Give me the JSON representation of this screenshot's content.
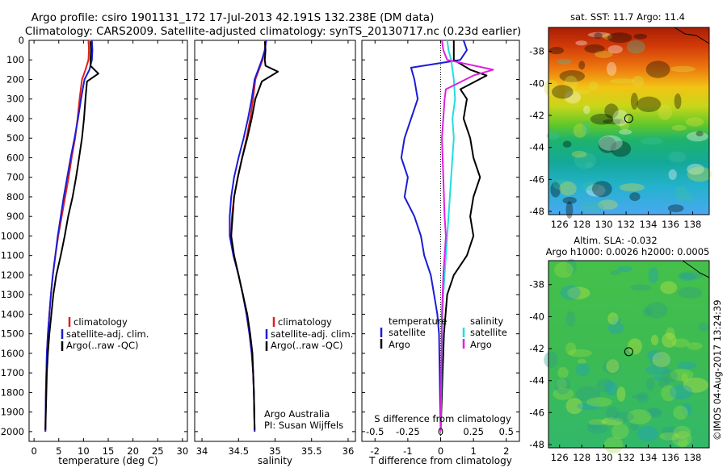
{
  "header": {
    "title_line1": "Argo profile: csiro 1901131_172 17-Jul-2013 42.191S 132.238E (DM data)",
    "title_line2": "Climatology: CARS2009. Satellite-adjusted climatology: synTS_20130717.nc (0.23d earlier)"
  },
  "colors": {
    "climatology": "#e0201b",
    "satellite": "#1c1cd6",
    "argo": "#000000",
    "salinity_satellite": "#22dede",
    "salinity_argo": "#e020e0"
  },
  "chart_data": [
    {
      "type": "line",
      "name": "temperature-profile",
      "xlabel": "temperature (deg C)",
      "ylabel": "",
      "xlim": [
        -1,
        31
      ],
      "ylim": [
        2050,
        0
      ],
      "xticks": [
        0,
        5,
        10,
        15,
        20,
        25,
        30
      ],
      "yticks": [
        0,
        100,
        200,
        300,
        400,
        500,
        600,
        700,
        800,
        900,
        1000,
        1100,
        1200,
        1300,
        1400,
        1500,
        1600,
        1700,
        1800,
        1900,
        2000
      ],
      "legend": [
        "climatology",
        "satellite-adj. clim.",
        "Argo(..raw -QC)"
      ],
      "legend_position": "lower-center",
      "series": [
        {
          "name": "climatology",
          "x": [
            11.0,
            11.1,
            11.0,
            10.4,
            9.7,
            9.2,
            8.8,
            8.3,
            7.6,
            7.0,
            6.3,
            5.6,
            4.9,
            4.3,
            3.8,
            3.4,
            3.1,
            2.8,
            2.6,
            2.5,
            2.4,
            2.3
          ],
          "y": [
            0,
            50,
            100,
            150,
            200,
            300,
            400,
            500,
            600,
            700,
            800,
            900,
            1000,
            1100,
            1200,
            1300,
            1400,
            1500,
            1600,
            1700,
            1800,
            2000
          ]
        },
        {
          "name": "satellite-adj. clim.",
          "x": [
            11.7,
            11.8,
            11.7,
            11.2,
            10.2,
            9.5,
            8.9,
            8.2,
            7.4,
            6.7,
            6.0,
            5.4,
            4.8,
            4.3,
            3.8,
            3.4,
            3.1,
            2.8,
            2.6,
            2.5,
            2.4,
            2.3
          ],
          "y": [
            0,
            50,
            100,
            150,
            200,
            300,
            400,
            500,
            600,
            700,
            800,
            900,
            1000,
            1100,
            1200,
            1300,
            1400,
            1500,
            1600,
            1700,
            1800,
            2000
          ]
        },
        {
          "name": "Argo(..raw -QC)",
          "x": [
            11.4,
            11.5,
            11.4,
            11.4,
            13.0,
            10.7,
            10.4,
            10.1,
            9.7,
            9.1,
            8.5,
            7.8,
            6.9,
            6.2,
            5.4,
            4.5,
            3.9,
            3.5,
            3.1,
            2.8,
            2.6,
            2.5,
            2.4,
            2.3
          ],
          "y": [
            5,
            50,
            100,
            130,
            170,
            210,
            300,
            400,
            500,
            600,
            700,
            800,
            900,
            1000,
            1100,
            1200,
            1300,
            1400,
            1500,
            1600,
            1700,
            1800,
            1900,
            1990
          ]
        }
      ]
    },
    {
      "type": "line",
      "name": "salinity-profile",
      "xlabel": "salinity",
      "ylabel": "",
      "xlim": [
        33.9,
        36.1
      ],
      "ylim": [
        2050,
        0
      ],
      "xticks": [
        34,
        34.5,
        35,
        35.5,
        36
      ],
      "legend": [
        "climatology",
        "satellite-adj. clim.",
        "Argo(..raw -QC)"
      ],
      "legend_position": "lower-center",
      "annotation_lines": [
        "Argo Australia",
        "PI: Susan Wijffels"
      ],
      "series": [
        {
          "name": "climatology",
          "x": [
            34.87,
            34.86,
            34.83,
            34.78,
            34.73,
            34.7,
            34.66,
            34.61,
            34.55,
            34.49,
            34.44,
            34.41,
            34.4,
            34.44,
            34.5,
            34.56,
            34.61,
            34.65,
            34.68,
            34.7,
            34.71,
            34.72
          ],
          "y": [
            0,
            50,
            100,
            150,
            200,
            300,
            400,
            500,
            600,
            700,
            800,
            900,
            1000,
            1100,
            1200,
            1300,
            1400,
            1500,
            1600,
            1700,
            1800,
            2000
          ]
        },
        {
          "name": "satellite-adj. clim.",
          "x": [
            34.88,
            34.86,
            34.82,
            34.77,
            34.72,
            34.68,
            34.63,
            34.57,
            34.5,
            34.44,
            34.4,
            34.38,
            34.38,
            34.43,
            34.5,
            34.56,
            34.61,
            34.65,
            34.68,
            34.7,
            34.71,
            34.72
          ],
          "y": [
            0,
            50,
            100,
            150,
            200,
            300,
            400,
            500,
            600,
            700,
            800,
            900,
            1000,
            1100,
            1200,
            1300,
            1400,
            1500,
            1600,
            1700,
            1800,
            2000
          ]
        },
        {
          "name": "Argo(..raw -QC)",
          "x": [
            34.86,
            34.87,
            34.86,
            34.87,
            35.04,
            34.82,
            34.73,
            34.68,
            34.62,
            34.55,
            34.49,
            34.44,
            34.42,
            34.4,
            34.44,
            34.5,
            34.56,
            34.62,
            34.66,
            34.69,
            34.7,
            34.71,
            34.72
          ],
          "y": [
            5,
            50,
            100,
            130,
            160,
            210,
            300,
            400,
            500,
            600,
            700,
            800,
            900,
            1000,
            1100,
            1200,
            1300,
            1400,
            1500,
            1600,
            1700,
            1800,
            1990
          ]
        }
      ]
    },
    {
      "type": "line",
      "name": "difference-profile",
      "xlabel": "T difference from climatology",
      "xlabel2": "S difference from climatology",
      "xlim": [
        -2.4,
        2.4
      ],
      "ylim": [
        2050,
        0
      ],
      "xticks": [
        -2,
        -1,
        0,
        1,
        2
      ],
      "xticks_top": [
        "-0.5",
        "-0.25",
        "0",
        "0.25",
        "0.5"
      ],
      "legend_groups": [
        {
          "title": "temperature",
          "items": [
            "satellite",
            "Argo"
          ]
        },
        {
          "title": "salinity",
          "items": [
            "satellite",
            "Argo"
          ]
        }
      ],
      "series": [
        {
          "name": "temperature satellite",
          "x": [
            0.7,
            0.8,
            0.6,
            -0.9,
            -0.8,
            -0.7,
            -0.9,
            -1.1,
            -1.2,
            -1.0,
            -1.1,
            -0.8,
            -0.6,
            -0.5,
            -0.3,
            -0.2,
            -0.1,
            -0.05,
            0.0
          ],
          "y": [
            0,
            50,
            100,
            140,
            200,
            300,
            400,
            500,
            600,
            700,
            800,
            900,
            1000,
            1100,
            1200,
            1300,
            1400,
            1500,
            2000
          ]
        },
        {
          "name": "temperature Argo",
          "x": [
            0.4,
            0.4,
            0.4,
            0.9,
            1.4,
            0.6,
            0.8,
            0.7,
            0.9,
            1.0,
            1.2,
            1.0,
            0.9,
            1.0,
            0.8,
            0.4,
            0.2,
            0.1,
            0.0
          ],
          "y": [
            0,
            50,
            100,
            150,
            180,
            250,
            300,
            400,
            500,
            600,
            700,
            800,
            900,
            1000,
            1100,
            1200,
            1300,
            1500,
            2000
          ]
        },
        {
          "name": "salinity satellite",
          "x": [
            0.05,
            0.06,
            0.08,
            0.1,
            0.11,
            0.09,
            0.1,
            0.09,
            0.08,
            0.07,
            0.06,
            0.05,
            0.04,
            0.03,
            0.02,
            0.01,
            0.0
          ],
          "y": [
            0,
            50,
            100,
            200,
            300,
            400,
            500,
            600,
            700,
            800,
            900,
            1000,
            1100,
            1200,
            1300,
            1500,
            2000
          ]
        },
        {
          "name": "salinity Argo",
          "x": [
            0.01,
            0.02,
            0.05,
            0.4,
            0.25,
            0.04,
            0.03,
            0.02,
            0.01,
            0.02,
            0.03,
            0.04,
            0.03,
            0.02,
            0.01,
            0.0
          ],
          "y": [
            0,
            50,
            100,
            150,
            180,
            250,
            300,
            400,
            500,
            700,
            900,
            1000,
            1100,
            1200,
            1400,
            2000
          ]
        }
      ]
    },
    {
      "type": "heatmap",
      "name": "sst-map",
      "title": "sat. SST: 11.7 Argo: 11.4",
      "xlim": [
        125,
        139.5
      ],
      "ylim": [
        -48.2,
        -36.5
      ],
      "xticks": [
        126,
        128,
        130,
        132,
        134,
        136,
        138
      ],
      "yticks": [
        -38,
        -40,
        -42,
        -44,
        -46,
        -48
      ],
      "marker": {
        "lon": 132.238,
        "lat": -42.191
      }
    },
    {
      "type": "heatmap",
      "name": "sla-map",
      "title": "Altim. SLA: -0.032",
      "subtitle": "Argo h1000: 0.0026 h2000: 0.0005",
      "xlim": [
        125,
        139.5
      ],
      "ylim": [
        -48.2,
        -36.5
      ],
      "xticks": [
        126,
        128,
        130,
        132,
        134,
        136,
        138
      ],
      "yticks": [
        -38,
        -40,
        -42,
        -44,
        -46,
        -48
      ],
      "marker": {
        "lon": 132.238,
        "lat": -42.191
      }
    }
  ],
  "footer": {
    "stamp": "©IMOS 04-Aug-2017 13:24:39"
  }
}
